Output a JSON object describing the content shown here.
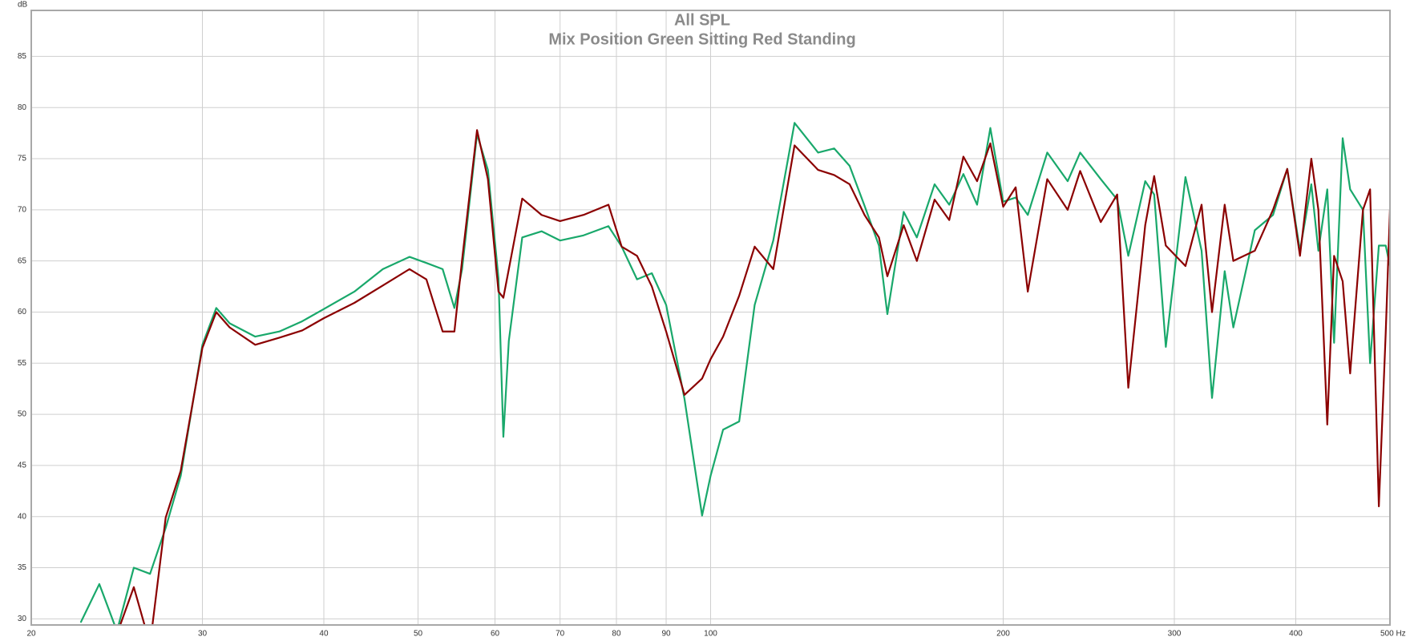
{
  "chart_data": {
    "type": "line",
    "title": "All SPL",
    "subtitle": "Mix Position Green Sitting Red Standing",
    "y_label": "dB",
    "log_x": true,
    "grid": true,
    "xlim": [
      20,
      500
    ],
    "ylim": [
      29.4,
      89.5
    ],
    "xticks": [
      20,
      30,
      40,
      50,
      60,
      70,
      80,
      90,
      100,
      200,
      300,
      400,
      {
        "value": 500,
        "label": "500 Hz"
      }
    ],
    "yticks": [
      30,
      35,
      40,
      45,
      50,
      55,
      60,
      65,
      70,
      75,
      80,
      85
    ],
    "x": [
      22.5,
      23.5,
      24.5,
      25.5,
      26.5,
      27.5,
      28.5,
      30,
      31,
      32,
      34,
      36,
      38,
      40,
      43,
      46,
      49,
      51,
      53,
      54.5,
      55.5,
      57.5,
      59,
      60.5,
      61.2,
      62,
      64,
      67,
      70,
      74,
      78.5,
      81,
      84,
      87,
      90,
      94,
      98,
      100,
      103,
      107,
      111,
      116,
      122,
      129,
      134,
      139,
      144,
      149,
      152,
      158,
      163,
      170,
      176,
      182,
      188,
      194,
      200,
      206,
      212,
      222,
      233,
      240,
      252,
      262,
      269,
      280,
      286,
      294,
      308,
      320,
      328,
      338,
      345,
      363,
      379,
      392,
      404,
      415,
      422,
      431,
      438,
      447,
      455,
      469,
      477,
      487,
      495,
      500
    ],
    "series": [
      {
        "name": "Green Sitting",
        "color": "#19a86b",
        "values": [
          29.7,
          33.4,
          28.8,
          35.0,
          34.4,
          38.9,
          44.0,
          56.8,
          60.4,
          58.9,
          57.6,
          58.1,
          59.1,
          60.3,
          62.0,
          64.2,
          65.4,
          64.8,
          64.2,
          60.4,
          64.2,
          77.4,
          73.9,
          63.3,
          47.8,
          57.2,
          67.3,
          67.9,
          67.0,
          67.5,
          68.4,
          66.4,
          63.2,
          63.8,
          60.7,
          51.5,
          40.1,
          44.0,
          48.5,
          49.3,
          60.7,
          67.0,
          78.5,
          75.6,
          76.0,
          74.3,
          70.4,
          66.5,
          59.8,
          69.8,
          67.3,
          72.5,
          70.5,
          73.5,
          70.5,
          78.0,
          70.8,
          71.2,
          69.5,
          75.6,
          72.8,
          75.6,
          73.0,
          71.0,
          65.5,
          72.8,
          71.5,
          56.6,
          73.2,
          66.0,
          51.6,
          64.0,
          58.5,
          68.0,
          69.5,
          74.0,
          66.0,
          72.5,
          66.0,
          72.0,
          57.0,
          77.0,
          72.0,
          70.0,
          55.0,
          66.5,
          66.5,
          64.5
        ]
      },
      {
        "name": "Red Standing",
        "color": "#8b0000",
        "values": [
          null,
          null,
          28.5,
          33.1,
          27.5,
          39.9,
          44.5,
          56.5,
          60.0,
          58.5,
          56.8,
          57.5,
          58.2,
          59.4,
          60.9,
          62.6,
          64.2,
          63.2,
          58.1,
          58.1,
          65.1,
          77.8,
          73.0,
          62.0,
          61.4,
          64.2,
          71.1,
          69.5,
          68.9,
          69.5,
          70.5,
          66.4,
          65.5,
          62.5,
          58.1,
          51.9,
          53.5,
          55.4,
          57.6,
          61.6,
          66.4,
          64.2,
          76.3,
          73.9,
          73.4,
          72.5,
          69.5,
          67.3,
          63.5,
          68.5,
          65.0,
          71.0,
          69.0,
          75.2,
          72.8,
          76.5,
          70.3,
          72.2,
          62.0,
          73.0,
          70.0,
          73.8,
          68.8,
          71.5,
          52.6,
          68.5,
          73.3,
          66.5,
          64.5,
          70.5,
          60.0,
          70.5,
          65.0,
          66.0,
          70.0,
          74.0,
          65.5,
          75.0,
          70.0,
          49.0,
          65.5,
          63.0,
          54.0,
          70.0,
          72.0,
          41.0,
          58.0,
          70.0
        ]
      }
    ]
  }
}
